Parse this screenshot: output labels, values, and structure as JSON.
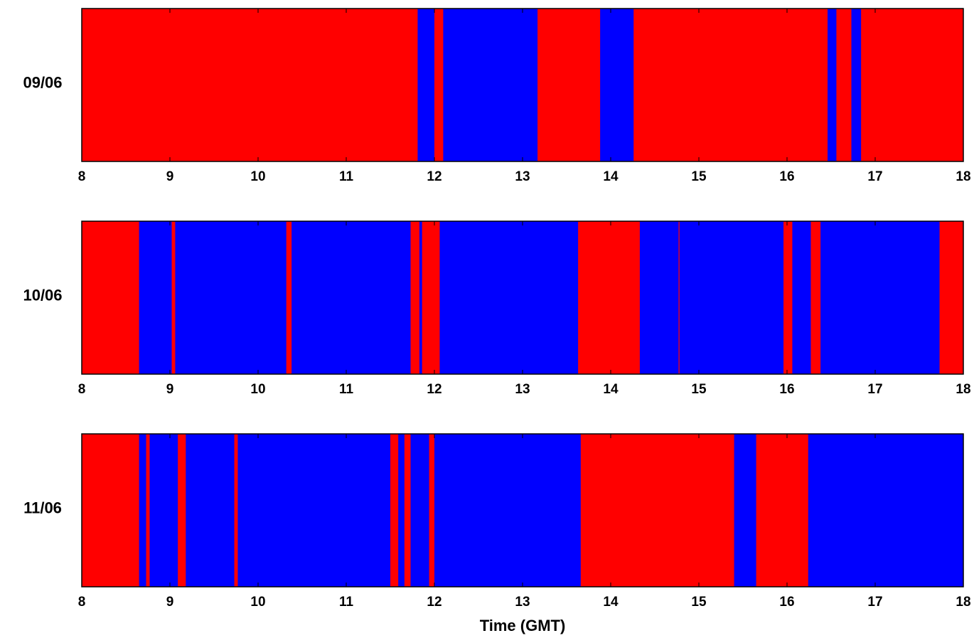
{
  "chart_data": [
    {
      "type": "timeline",
      "ylabel": "09/06",
      "xlim": [
        8,
        18
      ],
      "xticks": [
        8,
        9,
        10,
        11,
        12,
        13,
        14,
        15,
        16,
        17,
        18
      ],
      "base_color": "#ff0000",
      "color": "#0000ff",
      "intervals": [
        [
          11.81,
          12.0
        ],
        [
          12.1,
          13.17
        ],
        [
          13.88,
          14.26
        ],
        [
          16.46,
          16.56
        ],
        [
          16.73,
          16.84
        ]
      ]
    },
    {
      "type": "timeline",
      "ylabel": "10/06",
      "xlim": [
        8,
        18
      ],
      "xticks": [
        8,
        9,
        10,
        11,
        12,
        13,
        14,
        15,
        16,
        17,
        18
      ],
      "base_color": "#ff0000",
      "color": "#0000ff",
      "intervals": [
        [
          8.65,
          9.02
        ],
        [
          9.06,
          10.32
        ],
        [
          10.38,
          11.73
        ],
        [
          11.83,
          11.86
        ],
        [
          12.06,
          13.63
        ],
        [
          14.33,
          14.77
        ],
        [
          14.78,
          15.96
        ],
        [
          16.06,
          16.27
        ],
        [
          16.38,
          17.73
        ]
      ]
    },
    {
      "type": "timeline",
      "ylabel": "11/06",
      "xlabel": "Time (GMT)",
      "xlim": [
        8,
        18
      ],
      "xticks": [
        8,
        9,
        10,
        11,
        12,
        13,
        14,
        15,
        16,
        17,
        18
      ],
      "base_color": "#ff0000",
      "color": "#0000ff",
      "intervals": [
        [
          8.65,
          8.73
        ],
        [
          8.77,
          9.09
        ],
        [
          9.18,
          9.73
        ],
        [
          9.77,
          11.5
        ],
        [
          11.59,
          11.66
        ],
        [
          11.73,
          11.94
        ],
        [
          12.0,
          13.66
        ],
        [
          15.4,
          15.65
        ],
        [
          16.24,
          18
        ]
      ]
    }
  ]
}
